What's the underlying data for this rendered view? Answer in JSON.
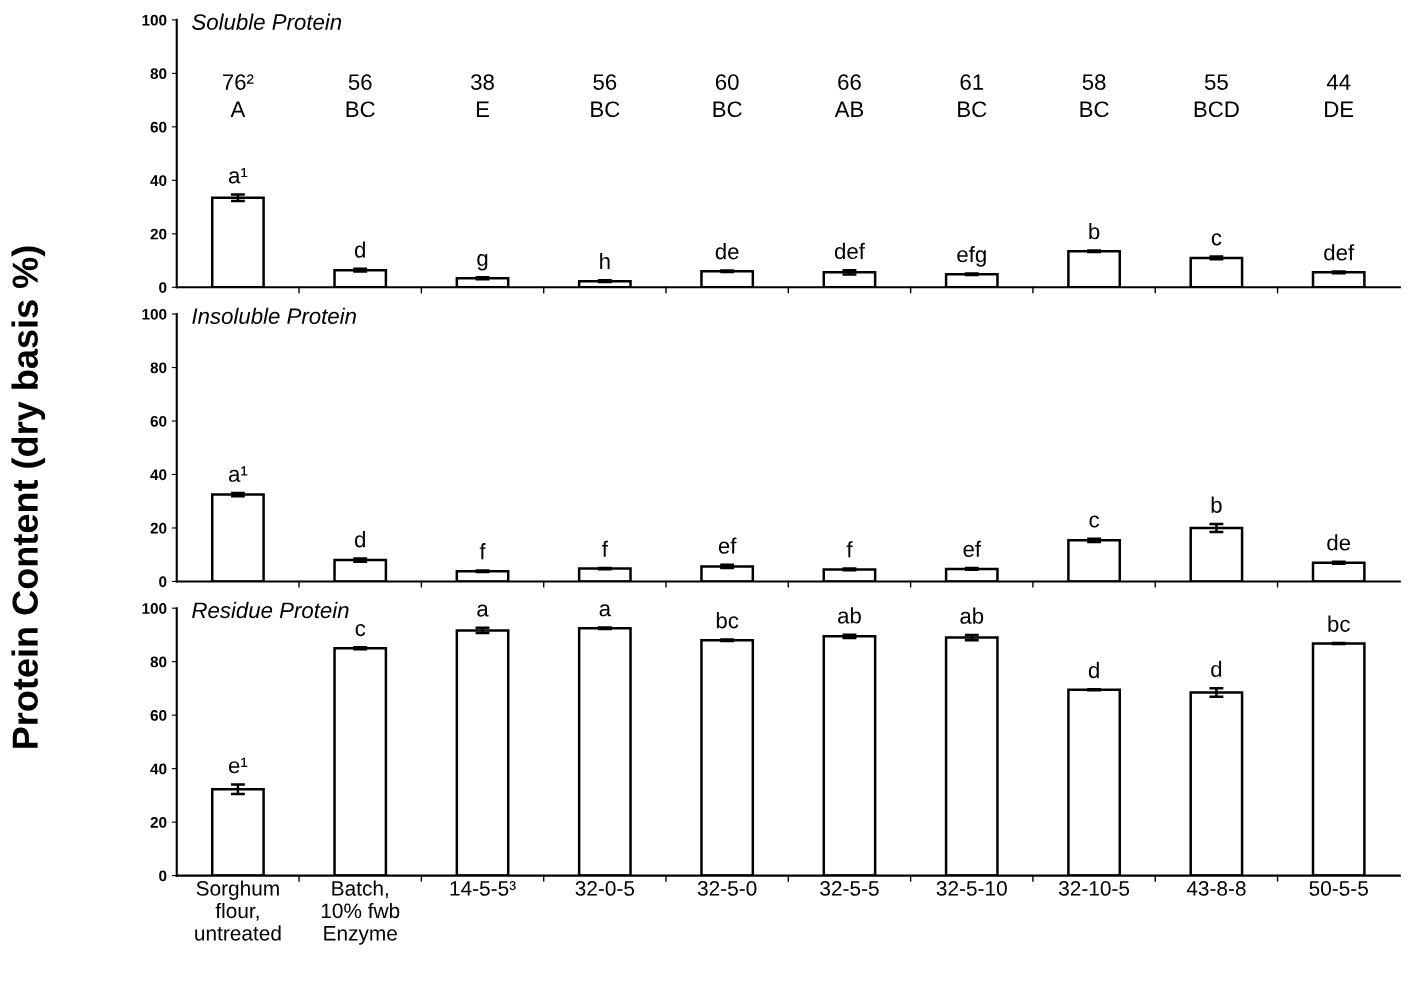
{
  "chart_data": [
    {
      "type": "bar",
      "title": "Soluble Protein",
      "categories": [
        null,
        null,
        null,
        null,
        null,
        null,
        null,
        null,
        null,
        null
      ],
      "values": [
        33.5,
        6.4,
        3.4,
        2.3,
        6.0,
        5.6,
        4.9,
        13.5,
        11.0,
        5.6
      ],
      "errors": [
        1.2,
        0.5,
        0.4,
        0.3,
        0.3,
        0.8,
        0.3,
        0.3,
        0.5,
        0.3
      ],
      "color": "#ffffff",
      "value_labels": [
        "a¹",
        "d",
        "g",
        "h",
        "de",
        "def",
        "efg",
        "b",
        "c",
        "def"
      ],
      "annotations": [
        "76²\nA",
        "56\nBC",
        "38\nE",
        "56\nBC",
        "60\nBC",
        "66\nAB",
        "61\nBC",
        "58\nBC",
        "55\nBCD",
        "44\nDE"
      ],
      "ylim": [
        0,
        100
      ],
      "yticks": [
        0,
        20,
        40,
        60,
        80,
        100
      ],
      "tick_labels": "y"
    },
    {
      "type": "bar",
      "title": "Insoluble Protein",
      "ylabel": "Protein Content (dry basis %)",
      "categories": [
        null,
        null,
        null,
        null,
        null,
        null,
        null,
        null,
        null,
        null
      ],
      "values": [
        32.5,
        8.0,
        3.8,
        4.8,
        5.6,
        4.5,
        4.7,
        15.4,
        20.0,
        7.0
      ],
      "errors": [
        0.6,
        0.6,
        0.3,
        0.2,
        0.6,
        0.3,
        0.3,
        0.6,
        1.5,
        0.4
      ],
      "color": "#ffffff",
      "value_labels": [
        "a¹",
        "d",
        "f",
        "f",
        "ef",
        "f",
        "ef",
        "c",
        "b",
        "de"
      ],
      "ylim": [
        0,
        100
      ],
      "yticks": [
        0,
        20,
        40,
        60,
        80,
        100
      ],
      "tick_labels": "y"
    },
    {
      "type": "bar",
      "title": "Residue Protein",
      "categories": [
        "Sorghum\nflour,\nuntreated",
        "Batch,\n10% fwb\nEnzyme",
        "14-5-5³",
        "32-0-5",
        "32-5-0",
        "32-5-5",
        "32-5-10",
        "32-10-5",
        "43-8-8",
        "50-5-5"
      ],
      "values": [
        32.3,
        85.0,
        91.7,
        92.5,
        88.0,
        89.5,
        89.0,
        69.5,
        68.5,
        86.8
      ],
      "errors": [
        1.8,
        0.4,
        1.0,
        0.3,
        0.3,
        0.6,
        1.0,
        0.2,
        1.6,
        0.2
      ],
      "color": "#ffffff",
      "value_labels": [
        "e¹",
        "c",
        "a",
        "a",
        "bc",
        "ab",
        "ab",
        "d",
        "d",
        "bc"
      ],
      "ylim": [
        0,
        100
      ],
      "yticks": [
        0,
        20,
        40,
        60,
        80,
        100
      ]
    }
  ]
}
